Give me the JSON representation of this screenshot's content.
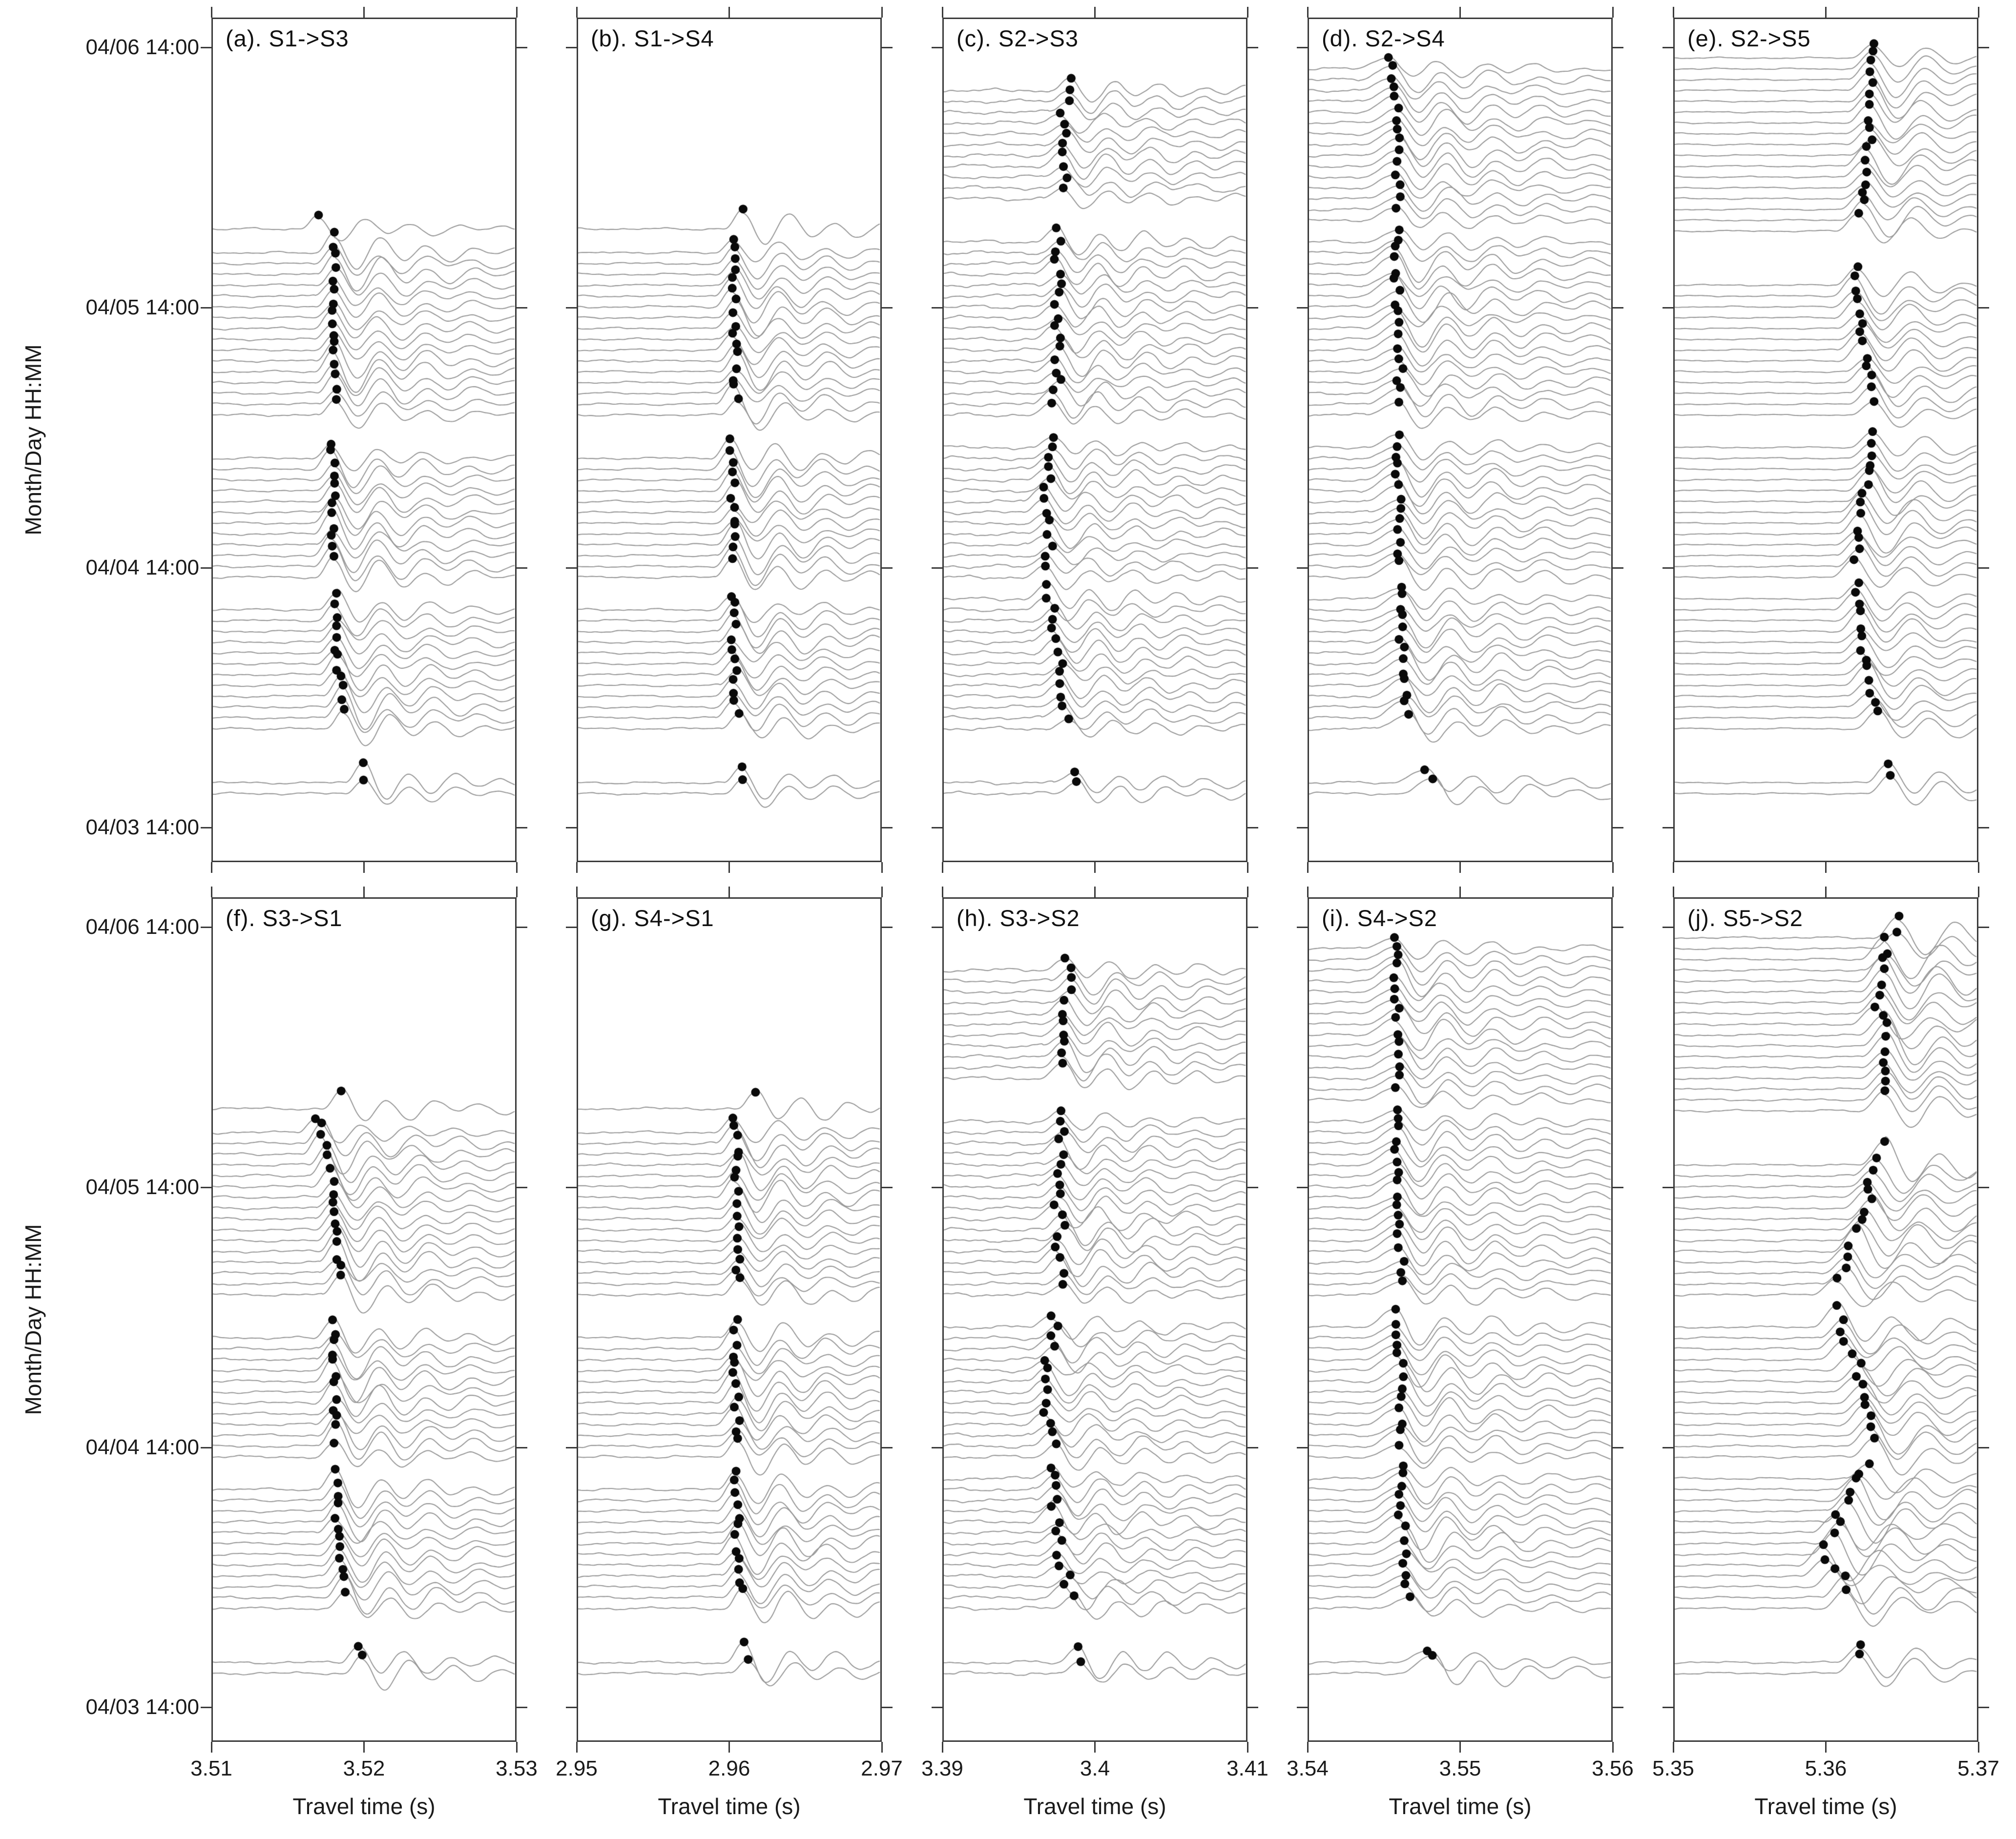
{
  "chart_data": {
    "type": "waveform-record-section",
    "description": "Ten-panel seismic cross-correlation record sections; hourly gray traces stacked by date-time with black travel-time pick dots.",
    "x_axis_title": "Travel time (s)",
    "y_axis": {
      "label": "Month/Day HH:MM",
      "ticks": [
        {
          "label": "04/06 14:00",
          "hour": 72
        },
        {
          "label": "04/05 14:00",
          "hour": 48
        },
        {
          "label": "04/04 14:00",
          "hour": 24
        },
        {
          "label": "04/03 14:00",
          "hour": 0
        }
      ],
      "top_hour": 74.6,
      "bottom_hour": -3.2,
      "grid": false
    },
    "trace_color": "#999999",
    "pick_color": "#0a0a0a",
    "axis_color": "#3a3a3a",
    "panels": [
      {
        "id": "a",
        "label": "(a). S1->S3",
        "row": 0,
        "col": 0,
        "xlim": [
          3.51,
          3.53
        ],
        "xticks": [
          "3.51",
          "3.52",
          "3.53"
        ],
        "blocks": [
          [
            2.8,
            4.2
          ],
          [
            8.9,
            20.6
          ],
          [
            22.8,
            34.6
          ],
          [
            37.2,
            53.6
          ],
          [
            55.2,
            55.2
          ]
        ],
        "pick_trend": [
          [
            0,
            0.52
          ],
          [
            3,
            0.505
          ],
          [
            6,
            0.47
          ],
          [
            9,
            0.435
          ],
          [
            12,
            0.418
          ],
          [
            16,
            0.408
          ],
          [
            20,
            0.402
          ],
          [
            23,
            0.4
          ],
          [
            28,
            0.398
          ],
          [
            34,
            0.396
          ],
          [
            37,
            0.412
          ],
          [
            42,
            0.405
          ],
          [
            47,
            0.398
          ],
          [
            53,
            0.4
          ],
          [
            55.2,
            0.356
          ]
        ],
        "jitter": 0.008,
        "noise": 0.14,
        "amp": 1.6,
        "onset_lead": 0.06,
        "coda_wl": 95,
        "coda_tau": 190,
        "seed": 101
      },
      {
        "id": "b",
        "label": "(b). S1->S4",
        "row": 0,
        "col": 1,
        "xlim": [
          2.95,
          2.97
        ],
        "xticks": [
          "2.95",
          "2.96",
          "2.97"
        ],
        "blocks": [
          [
            2.8,
            4.2
          ],
          [
            8.9,
            20.6
          ],
          [
            22.8,
            34.6
          ],
          [
            37.2,
            53.6
          ],
          [
            55.2,
            55.2
          ]
        ],
        "pick_trend": [
          [
            0,
            0.56
          ],
          [
            3,
            0.55
          ],
          [
            6,
            0.54
          ],
          [
            9,
            0.525
          ],
          [
            14,
            0.518
          ],
          [
            20,
            0.512
          ],
          [
            23,
            0.52
          ],
          [
            28,
            0.512
          ],
          [
            34,
            0.508
          ],
          [
            37,
            0.522
          ],
          [
            45,
            0.515
          ],
          [
            53,
            0.512
          ],
          [
            55.2,
            0.545
          ]
        ],
        "jitter": 0.01,
        "noise": 0.13,
        "amp": 1.5,
        "onset_lead": 0.06,
        "coda_wl": 95,
        "coda_tau": 200,
        "seed": 202
      },
      {
        "id": "c",
        "label": "(c). S2->S3",
        "row": 0,
        "col": 2,
        "xlim": [
          3.39,
          3.41
        ],
        "xticks": [
          "3.39",
          "3.4",
          "3.41"
        ],
        "blocks": [
          [
            2.6,
            4.4
          ],
          [
            8.9,
            21.4
          ],
          [
            22.8,
            35.4
          ],
          [
            37.2,
            54.2
          ],
          [
            57.4,
            68.9
          ]
        ],
        "pick_trend": [
          [
            0,
            0.46
          ],
          [
            3,
            0.45
          ],
          [
            6,
            0.43
          ],
          [
            9,
            0.41
          ],
          [
            13,
            0.385
          ],
          [
            17,
            0.36
          ],
          [
            21,
            0.345
          ],
          [
            23,
            0.35
          ],
          [
            27,
            0.34
          ],
          [
            31,
            0.345
          ],
          [
            35,
            0.36
          ],
          [
            37,
            0.37
          ],
          [
            42,
            0.378
          ],
          [
            47,
            0.372
          ],
          [
            54,
            0.385
          ],
          [
            58,
            0.4
          ],
          [
            62,
            0.39
          ],
          [
            65,
            0.4
          ],
          [
            68,
            0.41
          ]
        ],
        "jitter": 0.016,
        "noise": 0.22,
        "amp": 1.1,
        "onset_lead": 0.07,
        "coda_wl": 90,
        "coda_tau": 260,
        "seed": 303
      },
      {
        "id": "d",
        "label": "(d). S2->S4",
        "row": 0,
        "col": 3,
        "xlim": [
          3.54,
          3.56
        ],
        "xticks": [
          "3.54",
          "3.55",
          "3.56"
        ],
        "blocks": [
          [
            2.6,
            4.4
          ],
          [
            8.9,
            21.4
          ],
          [
            22.8,
            35.4
          ],
          [
            37.2,
            54.2
          ],
          [
            55.8,
            70.4
          ]
        ],
        "pick_trend": [
          [
            0,
            0.42
          ],
          [
            3,
            0.4
          ],
          [
            6,
            0.365
          ],
          [
            9,
            0.325
          ],
          [
            13,
            0.308
          ],
          [
            18,
            0.3
          ],
          [
            23,
            0.302
          ],
          [
            29,
            0.297
          ],
          [
            35,
            0.295
          ],
          [
            37,
            0.303
          ],
          [
            44,
            0.298
          ],
          [
            50,
            0.29
          ],
          [
            54,
            0.295
          ],
          [
            56,
            0.292
          ],
          [
            61,
            0.295
          ],
          [
            66,
            0.288
          ],
          [
            70.5,
            0.272
          ]
        ],
        "jitter": 0.011,
        "noise": 0.17,
        "amp": 1.3,
        "onset_lead": 0.11,
        "coda_wl": 100,
        "coda_tau": 260,
        "seed": 404
      },
      {
        "id": "e",
        "label": "(e). S2->S5",
        "row": 0,
        "col": 4,
        "xlim": [
          5.35,
          5.37
        ],
        "xticks": [
          "5.35",
          "5.36",
          "5.37"
        ],
        "blocks": [
          [
            2.6,
            4.4
          ],
          [
            8.9,
            21.4
          ],
          [
            22.8,
            35.4
          ],
          [
            37.2,
            50.4
          ],
          [
            54.6,
            71.2
          ]
        ],
        "pick_trend": [
          [
            0,
            0.72
          ],
          [
            3,
            0.71
          ],
          [
            6,
            0.695
          ],
          [
            9,
            0.665
          ],
          [
            12,
            0.64
          ],
          [
            16,
            0.615
          ],
          [
            20,
            0.603
          ],
          [
            23,
            0.6
          ],
          [
            27,
            0.618
          ],
          [
            31,
            0.638
          ],
          [
            35,
            0.655
          ],
          [
            37,
            0.66
          ],
          [
            41,
            0.64
          ],
          [
            45,
            0.615
          ],
          [
            48,
            0.603
          ],
          [
            50.4,
            0.6
          ],
          [
            54.6,
            0.612
          ],
          [
            58,
            0.628
          ],
          [
            62,
            0.645
          ],
          [
            66,
            0.652
          ],
          [
            69,
            0.648
          ],
          [
            71.2,
            0.655
          ]
        ],
        "jitter": 0.009,
        "noise": 0.09,
        "amp": 1.55,
        "onset_lead": 0.075,
        "coda_wl": 110,
        "coda_tau": 170,
        "seed": 505
      },
      {
        "id": "f",
        "label": "(f). S3->S1",
        "row": 1,
        "col": 0,
        "xlim": [
          3.51,
          3.53
        ],
        "xticks": [
          "3.51",
          "3.52",
          "3.53"
        ],
        "blocks": [
          [
            2.8,
            4.2
          ],
          [
            8.9,
            20.6
          ],
          [
            22.8,
            34.6
          ],
          [
            37.2,
            53.6
          ],
          [
            55.2,
            55.2
          ]
        ],
        "pick_trend": [
          [
            0,
            0.52
          ],
          [
            3,
            0.5
          ],
          [
            6,
            0.465
          ],
          [
            9,
            0.43
          ],
          [
            12,
            0.418
          ],
          [
            16,
            0.41
          ],
          [
            20,
            0.404
          ],
          [
            23,
            0.402
          ],
          [
            28,
            0.4
          ],
          [
            34,
            0.398
          ],
          [
            37,
            0.42
          ],
          [
            41,
            0.412
          ],
          [
            45,
            0.405
          ],
          [
            48,
            0.39
          ],
          [
            51,
            0.36
          ],
          [
            53,
            0.345
          ],
          [
            55.2,
            0.417
          ]
        ],
        "jitter": 0.009,
        "noise": 0.16,
        "amp": 1.6,
        "onset_lead": 0.06,
        "coda_wl": 95,
        "coda_tau": 200,
        "seed": 606
      },
      {
        "id": "g",
        "label": "(g). S4->S1",
        "row": 1,
        "col": 1,
        "xlim": [
          2.95,
          2.97
        ],
        "xticks": [
          "2.95",
          "2.96",
          "2.97"
        ],
        "blocks": [
          [
            2.8,
            4.2
          ],
          [
            8.9,
            20.6
          ],
          [
            22.8,
            34.6
          ],
          [
            37.2,
            53.6
          ],
          [
            55.2,
            55.2
          ]
        ],
        "pick_trend": [
          [
            0,
            0.57
          ],
          [
            3,
            0.555
          ],
          [
            6,
            0.545
          ],
          [
            9,
            0.535
          ],
          [
            14,
            0.528
          ],
          [
            20,
            0.52
          ],
          [
            23,
            0.53
          ],
          [
            28,
            0.522
          ],
          [
            34,
            0.518
          ],
          [
            37,
            0.53
          ],
          [
            45,
            0.522
          ],
          [
            50,
            0.535
          ],
          [
            53,
            0.52
          ],
          [
            55.2,
            0.595
          ]
        ],
        "jitter": 0.01,
        "noise": 0.16,
        "amp": 1.5,
        "onset_lead": 0.06,
        "coda_wl": 95,
        "coda_tau": 210,
        "seed": 707
      },
      {
        "id": "h",
        "label": "(h). S3->S2",
        "row": 1,
        "col": 2,
        "xlim": [
          3.39,
          3.41
        ],
        "xticks": [
          "3.39",
          "3.4",
          "3.41"
        ],
        "blocks": [
          [
            2.6,
            4.4
          ],
          [
            8.9,
            21.4
          ],
          [
            22.8,
            35.4
          ],
          [
            37.2,
            54.2
          ],
          [
            57.4,
            68.9
          ]
        ],
        "pick_trend": [
          [
            0,
            0.47
          ],
          [
            3,
            0.46
          ],
          [
            6,
            0.44
          ],
          [
            9,
            0.415
          ],
          [
            13,
            0.39
          ],
          [
            17,
            0.365
          ],
          [
            21,
            0.35
          ],
          [
            23,
            0.355
          ],
          [
            27,
            0.345
          ],
          [
            31,
            0.35
          ],
          [
            35,
            0.368
          ],
          [
            37,
            0.378
          ],
          [
            42,
            0.385
          ],
          [
            47,
            0.375
          ],
          [
            54,
            0.39
          ],
          [
            58,
            0.408
          ],
          [
            61,
            0.395
          ],
          [
            64,
            0.405
          ],
          [
            68,
            0.415
          ]
        ],
        "jitter": 0.018,
        "noise": 0.22,
        "amp": 1.15,
        "onset_lead": 0.07,
        "coda_wl": 92,
        "coda_tau": 260,
        "seed": 808
      },
      {
        "id": "i",
        "label": "(i). S4->S2",
        "row": 1,
        "col": 3,
        "xlim": [
          3.54,
          3.56
        ],
        "xticks": [
          "3.54",
          "3.55",
          "3.56"
        ],
        "blocks": [
          [
            2.6,
            4.4
          ],
          [
            8.9,
            21.4
          ],
          [
            22.8,
            35.4
          ],
          [
            37.2,
            54.2
          ],
          [
            55.8,
            70.4
          ]
        ],
        "pick_trend": [
          [
            0,
            0.42
          ],
          [
            3,
            0.405
          ],
          [
            6,
            0.37
          ],
          [
            9,
            0.33
          ],
          [
            13,
            0.312
          ],
          [
            18,
            0.305
          ],
          [
            23,
            0.307
          ],
          [
            29,
            0.3
          ],
          [
            35,
            0.298
          ],
          [
            37,
            0.307
          ],
          [
            44,
            0.3
          ],
          [
            50,
            0.293
          ],
          [
            54,
            0.298
          ],
          [
            56,
            0.295
          ],
          [
            61,
            0.298
          ],
          [
            66,
            0.29
          ],
          [
            70.4,
            0.275
          ]
        ],
        "jitter": 0.013,
        "noise": 0.17,
        "amp": 1.3,
        "onset_lead": 0.11,
        "coda_wl": 100,
        "coda_tau": 260,
        "seed": 909
      },
      {
        "id": "j",
        "label": "(j). S5->S2",
        "row": 1,
        "col": 4,
        "xlim": [
          5.35,
          5.37
        ],
        "xticks": [
          "5.35",
          "5.36",
          "5.37"
        ],
        "blocks": [
          [
            2.6,
            4.4
          ],
          [
            8.9,
            21.4
          ],
          [
            22.8,
            35.4
          ],
          [
            37.2,
            50.4
          ],
          [
            54.6,
            71.2
          ]
        ],
        "pick_trend": [
          [
            0,
            0.6
          ],
          [
            2,
            0.605
          ],
          [
            4,
            0.625
          ],
          [
            6,
            0.635
          ],
          [
            8,
            0.59
          ],
          [
            10,
            0.55
          ],
          [
            12,
            0.49
          ],
          [
            14,
            0.52
          ],
          [
            16,
            0.55
          ],
          [
            18,
            0.585
          ],
          [
            20,
            0.62
          ],
          [
            22,
            0.64
          ],
          [
            24,
            0.65
          ],
          [
            26,
            0.64
          ],
          [
            28,
            0.615
          ],
          [
            30,
            0.6
          ],
          [
            32,
            0.575
          ],
          [
            34,
            0.55
          ],
          [
            36,
            0.49
          ],
          [
            38,
            0.54
          ],
          [
            40,
            0.575
          ],
          [
            42,
            0.6
          ],
          [
            44,
            0.625
          ],
          [
            46,
            0.645
          ],
          [
            48,
            0.66
          ],
          [
            50.4,
            0.68
          ],
          [
            54.6,
            0.7
          ],
          [
            57,
            0.715
          ],
          [
            60,
            0.69
          ],
          [
            63,
            0.675
          ],
          [
            66,
            0.695
          ],
          [
            69,
            0.71
          ],
          [
            71.2,
            0.728
          ]
        ],
        "jitter": 0.018,
        "noise": 0.13,
        "amp": 1.7,
        "onset_lead": 0.08,
        "coda_wl": 115,
        "coda_tau": 210,
        "seed": 1010
      }
    ]
  }
}
